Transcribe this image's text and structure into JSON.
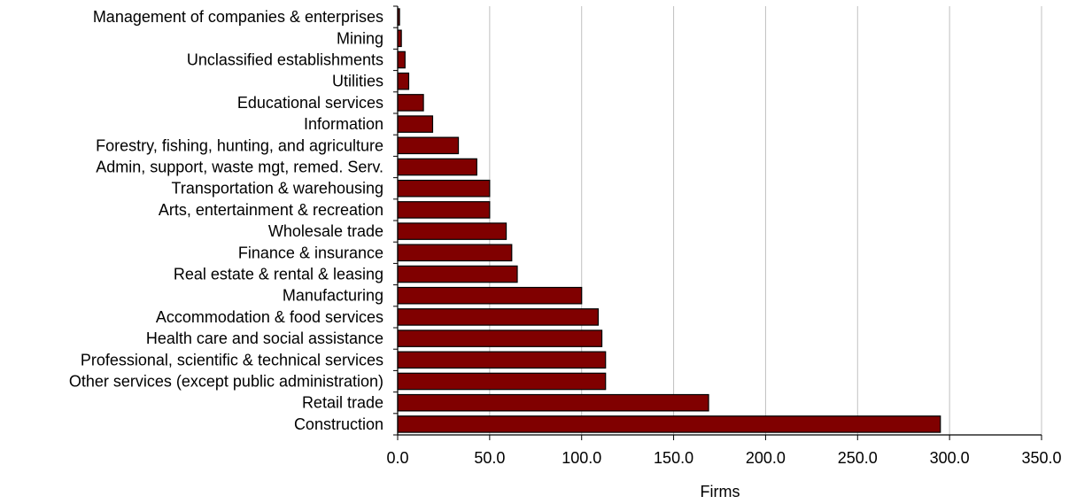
{
  "chart_data": {
    "type": "bar",
    "orientation": "horizontal",
    "title": "",
    "xlabel": "Firms",
    "ylabel": "",
    "xlim": [
      0,
      350
    ],
    "x_ticks": [
      "0.0",
      "50.0",
      "100.0",
      "150.0",
      "200.0",
      "250.0",
      "300.0",
      "350.0"
    ],
    "x_tick_values": [
      0,
      50,
      100,
      150,
      200,
      250,
      300,
      350
    ],
    "grid": "vertical",
    "legend": "none",
    "colors": {
      "bar_fill": "#800000",
      "bar_stroke": "#000000",
      "grid": "#c0c0c0",
      "axis": "#000000"
    },
    "categories": [
      "Management of companies & enterprises",
      "Mining",
      "Unclassified establishments",
      "Utilities",
      "Educational services",
      "Information",
      "Forestry, fishing, hunting, and agriculture",
      "Admin, support, waste mgt, remed. Serv.",
      "Transportation & warehousing",
      "Arts, entertainment & recreation",
      "Wholesale trade",
      "Finance & insurance",
      "Real estate & rental & leasing",
      "Manufacturing",
      "Accommodation & food services",
      "Health care and social assistance",
      "Professional, scientific & technical services",
      "Other services (except public administration)",
      "Retail trade",
      "Construction"
    ],
    "values": [
      1,
      2,
      4,
      6,
      14,
      19,
      33,
      43,
      50,
      50,
      59,
      62,
      65,
      100,
      109,
      111,
      113,
      113,
      169,
      295
    ]
  }
}
